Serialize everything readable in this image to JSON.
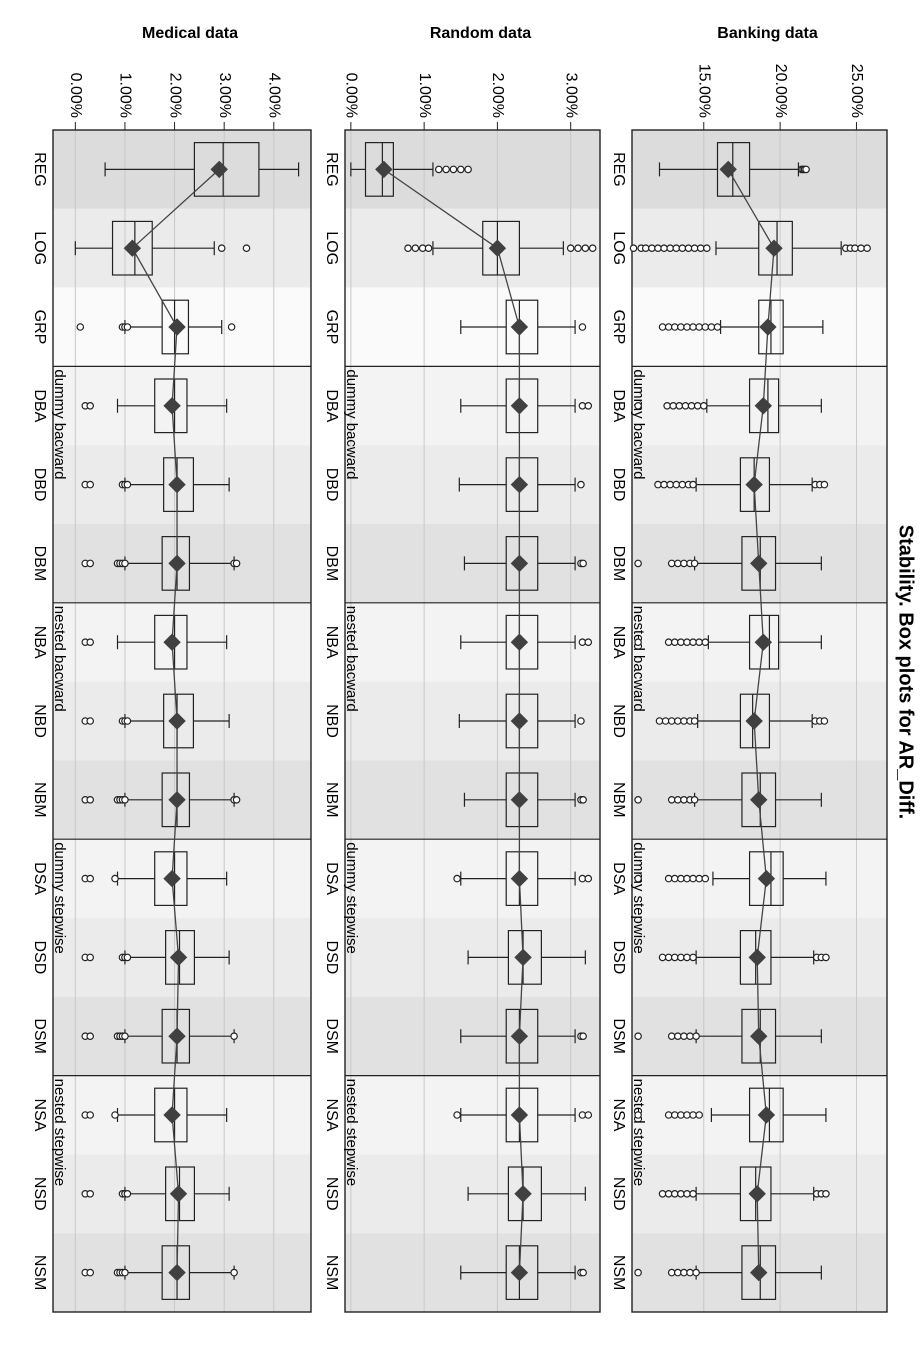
{
  "page": {
    "title": "Stability. Box plots for AR_Diff."
  },
  "categories": [
    "REG",
    "LOG",
    "GRP",
    "DBA",
    "DBD",
    "DBM",
    "NBA",
    "NBD",
    "NBM",
    "DSA",
    "DSD",
    "DSM",
    "NSA",
    "NSD",
    "NSM"
  ],
  "group_labels": [
    "dummy bacward",
    "nested bacward",
    "dummy stepwise",
    "nested stepwise"
  ],
  "chart_data": [
    {
      "type": "box",
      "title": "Banking data",
      "value_format": "percent",
      "ylim": [
        10.3,
        27.0
      ],
      "ticks": [
        15.0,
        20.0,
        25.0
      ],
      "tick_labels": [
        "15.00%",
        "20.00%",
        "25.00%"
      ],
      "series": [
        {
          "category": "REG",
          "whisker_low": 12.1,
          "q1": 15.9,
          "median": 16.9,
          "q3": 18.0,
          "whisker_high": 21.2,
          "mean": 16.6,
          "outliers": [
            21.4,
            21.5,
            21.6,
            21.7
          ]
        },
        {
          "category": "LOG",
          "whisker_low": 15.8,
          "q1": 18.6,
          "median": 19.8,
          "q3": 20.8,
          "whisker_high": 24.0,
          "mean": 19.6,
          "outliers": [
            10.4,
            10.9,
            11.2,
            11.6,
            12.0,
            12.4,
            12.8,
            13.2,
            13.6,
            14.0,
            14.4,
            14.8,
            15.2,
            24.3,
            24.6,
            24.9,
            25.3,
            25.7
          ]
        },
        {
          "category": "GRP",
          "whisker_low": 16.1,
          "q1": 18.6,
          "median": 19.4,
          "q3": 20.2,
          "whisker_high": 22.8,
          "mean": 19.2,
          "outliers": [
            12.3,
            12.7,
            13.1,
            13.5,
            13.9,
            14.3,
            14.7,
            15.1,
            15.5,
            15.9
          ]
        },
        {
          "category": "DBA",
          "whisker_low": 15.2,
          "q1": 18.0,
          "median": 19.2,
          "q3": 19.9,
          "whisker_high": 22.7,
          "mean": 18.9,
          "outliers": [
            10.7,
            12.6,
            13.0,
            13.4,
            13.8,
            14.2,
            14.6,
            15.0
          ]
        },
        {
          "category": "DBD",
          "whisker_low": 14.5,
          "q1": 17.4,
          "median": 18.3,
          "q3": 19.3,
          "whisker_high": 22.1,
          "mean": 18.3,
          "outliers": [
            12.0,
            12.4,
            12.8,
            13.2,
            13.6,
            14.0,
            14.3,
            22.3,
            22.6,
            22.9
          ]
        },
        {
          "category": "DBM",
          "whisker_low": 14.4,
          "q1": 17.5,
          "median": 18.7,
          "q3": 19.7,
          "whisker_high": 22.7,
          "mean": 18.6,
          "outliers": [
            10.7,
            12.9,
            13.3,
            13.7,
            14.1,
            14.4
          ]
        },
        {
          "category": "NBA",
          "whisker_low": 15.3,
          "q1": 18.0,
          "median": 19.3,
          "q3": 19.9,
          "whisker_high": 22.7,
          "mean": 18.9,
          "outliers": [
            10.7,
            12.7,
            13.1,
            13.5,
            13.9,
            14.3,
            14.7,
            15.1
          ]
        },
        {
          "category": "NBD",
          "whisker_low": 14.6,
          "q1": 17.4,
          "median": 18.2,
          "q3": 19.3,
          "whisker_high": 22.1,
          "mean": 18.3,
          "outliers": [
            12.1,
            12.5,
            12.9,
            13.3,
            13.7,
            14.1,
            14.4,
            22.3,
            22.6,
            22.9
          ]
        },
        {
          "category": "NBM",
          "whisker_low": 14.4,
          "q1": 17.5,
          "median": 18.7,
          "q3": 19.7,
          "whisker_high": 22.7,
          "mean": 18.6,
          "outliers": [
            10.7,
            12.9,
            13.3,
            13.7,
            14.1,
            14.4
          ]
        },
        {
          "category": "DSA",
          "whisker_low": 15.6,
          "q1": 18.0,
          "median": 19.4,
          "q3": 20.2,
          "whisker_high": 23.0,
          "mean": 19.1,
          "outliers": [
            10.7,
            12.7,
            13.1,
            13.5,
            13.9,
            14.3,
            14.7,
            15.1
          ]
        },
        {
          "category": "DSD",
          "whisker_low": 14.5,
          "q1": 17.4,
          "median": 18.4,
          "q3": 19.4,
          "whisker_high": 22.2,
          "mean": 18.5,
          "outliers": [
            12.3,
            12.7,
            13.1,
            13.5,
            13.9,
            14.3,
            22.4,
            22.7,
            23.0
          ]
        },
        {
          "category": "DSM",
          "whisker_low": 14.5,
          "q1": 17.5,
          "median": 18.7,
          "q3": 19.7,
          "whisker_high": 22.7,
          "mean": 18.6,
          "outliers": [
            10.7,
            12.9,
            13.3,
            13.7,
            14.1,
            14.5
          ]
        },
        {
          "category": "NSA",
          "whisker_low": 15.5,
          "q1": 18.0,
          "median": 19.3,
          "q3": 20.2,
          "whisker_high": 23.0,
          "mean": 19.1,
          "outliers": [
            10.7,
            12.7,
            13.1,
            13.5,
            13.9,
            14.3,
            14.7
          ]
        },
        {
          "category": "NSD",
          "whisker_low": 14.5,
          "q1": 17.4,
          "median": 18.4,
          "q3": 19.4,
          "whisker_high": 22.2,
          "mean": 18.5,
          "outliers": [
            12.3,
            12.7,
            13.1,
            13.5,
            13.9,
            14.3,
            22.4,
            22.7,
            23.0
          ]
        },
        {
          "category": "NSM",
          "whisker_low": 14.5,
          "q1": 17.5,
          "median": 18.7,
          "q3": 19.7,
          "whisker_high": 22.7,
          "mean": 18.6,
          "outliers": [
            10.7,
            12.9,
            13.3,
            13.7,
            14.1,
            14.5
          ]
        }
      ]
    },
    {
      "type": "box",
      "title": "Random data",
      "value_format": "percent",
      "ylim": [
        -0.08,
        3.4
      ],
      "ticks": [
        0.0,
        1.0,
        2.0,
        3.0
      ],
      "tick_labels": [
        "0.00%",
        "1.00%",
        "2.00%",
        "3.00%"
      ],
      "series": [
        {
          "category": "REG",
          "whisker_low": 0.0,
          "q1": 0.2,
          "median": 0.43,
          "q3": 0.58,
          "whisker_high": 1.12,
          "mean": 0.45,
          "outliers": [
            1.2,
            1.3,
            1.4,
            1.5,
            1.6
          ]
        },
        {
          "category": "LOG",
          "whisker_low": 1.12,
          "q1": 1.8,
          "median": 2.0,
          "q3": 2.3,
          "whisker_high": 2.9,
          "mean": 2.0,
          "outliers": [
            0.78,
            0.88,
            0.98,
            1.06,
            3.0,
            3.1,
            3.2,
            3.3
          ]
        },
        {
          "category": "GRP",
          "whisker_low": 1.5,
          "q1": 2.12,
          "median": 2.3,
          "q3": 2.55,
          "whisker_high": 3.06,
          "mean": 2.3,
          "outliers": [
            3.16
          ]
        },
        {
          "category": "DBA",
          "whisker_low": 1.5,
          "q1": 2.12,
          "median": 2.3,
          "q3": 2.55,
          "whisker_high": 3.06,
          "mean": 2.3,
          "outliers": [
            3.16,
            3.24
          ]
        },
        {
          "category": "DBD",
          "whisker_low": 1.48,
          "q1": 2.12,
          "median": 2.3,
          "q3": 2.55,
          "whisker_high": 3.06,
          "mean": 2.3,
          "outliers": [
            3.14
          ]
        },
        {
          "category": "DBM",
          "whisker_low": 1.55,
          "q1": 2.12,
          "median": 2.3,
          "q3": 2.55,
          "whisker_high": 3.06,
          "mean": 2.3,
          "outliers": [
            3.14,
            3.17
          ]
        },
        {
          "category": "NBA",
          "whisker_low": 1.5,
          "q1": 2.12,
          "median": 2.3,
          "q3": 2.55,
          "whisker_high": 3.06,
          "mean": 2.3,
          "outliers": [
            3.16,
            3.24
          ]
        },
        {
          "category": "NBD",
          "whisker_low": 1.48,
          "q1": 2.12,
          "median": 2.3,
          "q3": 2.55,
          "whisker_high": 3.06,
          "mean": 2.3,
          "outliers": [
            3.14
          ]
        },
        {
          "category": "NBM",
          "whisker_low": 1.55,
          "q1": 2.12,
          "median": 2.3,
          "q3": 2.55,
          "whisker_high": 3.06,
          "mean": 2.3,
          "outliers": [
            3.14,
            3.17
          ]
        },
        {
          "category": "DSA",
          "whisker_low": 1.5,
          "q1": 2.12,
          "median": 2.3,
          "q3": 2.55,
          "whisker_high": 3.06,
          "mean": 2.3,
          "outliers": [
            1.45,
            3.16,
            3.24
          ]
        },
        {
          "category": "DSD",
          "whisker_low": 1.6,
          "q1": 2.15,
          "median": 2.35,
          "q3": 2.6,
          "whisker_high": 3.2,
          "mean": 2.35,
          "outliers": []
        },
        {
          "category": "DSM",
          "whisker_low": 1.5,
          "q1": 2.12,
          "median": 2.3,
          "q3": 2.55,
          "whisker_high": 3.06,
          "mean": 2.3,
          "outliers": [
            3.14,
            3.17
          ]
        },
        {
          "category": "NSA",
          "whisker_low": 1.5,
          "q1": 2.12,
          "median": 2.3,
          "q3": 2.55,
          "whisker_high": 3.06,
          "mean": 2.3,
          "outliers": [
            1.45,
            3.16,
            3.24
          ]
        },
        {
          "category": "NSD",
          "whisker_low": 1.6,
          "q1": 2.15,
          "median": 2.35,
          "q3": 2.6,
          "whisker_high": 3.2,
          "mean": 2.35,
          "outliers": []
        },
        {
          "category": "NSM",
          "whisker_low": 1.5,
          "q1": 2.12,
          "median": 2.3,
          "q3": 2.55,
          "whisker_high": 3.06,
          "mean": 2.3,
          "outliers": [
            3.14,
            3.17
          ]
        }
      ]
    },
    {
      "type": "box",
      "title": "Medical data",
      "value_format": "percent",
      "ylim": [
        -0.45,
        4.75
      ],
      "ticks": [
        0.0,
        1.0,
        2.0,
        3.0,
        4.0
      ],
      "tick_labels": [
        "0.00%",
        "1.00%",
        "2.00%",
        "3.00%",
        "4.00%"
      ],
      "series": [
        {
          "category": "REG",
          "whisker_low": 0.6,
          "q1": 2.4,
          "median": 2.98,
          "q3": 3.7,
          "whisker_high": 4.5,
          "mean": 2.9,
          "outliers": []
        },
        {
          "category": "LOG",
          "whisker_low": 0.0,
          "q1": 0.75,
          "median": 1.2,
          "q3": 1.55,
          "whisker_high": 2.8,
          "mean": 1.15,
          "outliers": [
            2.95,
            3.45
          ]
        },
        {
          "category": "GRP",
          "whisker_low": 1.0,
          "q1": 1.75,
          "median": 2.0,
          "q3": 2.28,
          "whisker_high": 2.95,
          "mean": 2.05,
          "outliers": [
            0.1,
            0.95,
            1.0,
            1.05,
            3.15
          ]
        },
        {
          "category": "DBA",
          "whisker_low": 0.85,
          "q1": 1.6,
          "median": 2.0,
          "q3": 2.25,
          "whisker_high": 3.05,
          "mean": 1.95,
          "outliers": [
            0.2,
            0.3
          ]
        },
        {
          "category": "DBD",
          "whisker_low": 1.0,
          "q1": 1.78,
          "median": 2.05,
          "q3": 2.38,
          "whisker_high": 3.1,
          "mean": 2.05,
          "outliers": [
            0.2,
            0.3,
            0.95,
            1.0,
            1.05
          ]
        },
        {
          "category": "DBM",
          "whisker_low": 1.0,
          "q1": 1.75,
          "median": 2.05,
          "q3": 2.3,
          "whisker_high": 3.2,
          "mean": 2.05,
          "outliers": [
            0.2,
            0.3,
            0.85,
            0.9,
            0.95,
            1.0,
            3.2,
            3.25
          ]
        },
        {
          "category": "NBA",
          "whisker_low": 0.85,
          "q1": 1.6,
          "median": 2.0,
          "q3": 2.25,
          "whisker_high": 3.05,
          "mean": 1.95,
          "outliers": [
            0.2,
            0.3
          ]
        },
        {
          "category": "NBD",
          "whisker_low": 1.0,
          "q1": 1.78,
          "median": 2.05,
          "q3": 2.38,
          "whisker_high": 3.1,
          "mean": 2.05,
          "outliers": [
            0.2,
            0.3,
            0.95,
            1.0,
            1.05
          ]
        },
        {
          "category": "NBM",
          "whisker_low": 1.0,
          "q1": 1.75,
          "median": 2.05,
          "q3": 2.3,
          "whisker_high": 3.2,
          "mean": 2.05,
          "outliers": [
            0.2,
            0.3,
            0.85,
            0.9,
            0.95,
            1.0,
            3.2,
            3.25
          ]
        },
        {
          "category": "DSA",
          "whisker_low": 0.85,
          "q1": 1.6,
          "median": 2.0,
          "q3": 2.25,
          "whisker_high": 3.05,
          "mean": 1.95,
          "outliers": [
            0.2,
            0.3,
            0.8
          ]
        },
        {
          "category": "DSD",
          "whisker_low": 1.0,
          "q1": 1.82,
          "median": 2.1,
          "q3": 2.4,
          "whisker_high": 3.1,
          "mean": 2.08,
          "outliers": [
            0.2,
            0.3,
            0.95,
            1.0,
            1.05
          ]
        },
        {
          "category": "DSM",
          "whisker_low": 1.0,
          "q1": 1.75,
          "median": 2.05,
          "q3": 2.3,
          "whisker_high": 3.2,
          "mean": 2.05,
          "outliers": [
            0.2,
            0.3,
            0.85,
            0.9,
            0.95,
            1.0,
            3.2
          ]
        },
        {
          "category": "NSA",
          "whisker_low": 0.85,
          "q1": 1.6,
          "median": 2.0,
          "q3": 2.25,
          "whisker_high": 3.05,
          "mean": 1.95,
          "outliers": [
            0.2,
            0.3,
            0.8
          ]
        },
        {
          "category": "NSD",
          "whisker_low": 1.0,
          "q1": 1.82,
          "median": 2.1,
          "q3": 2.4,
          "whisker_high": 3.1,
          "mean": 2.08,
          "outliers": [
            0.2,
            0.3,
            0.95,
            1.0,
            1.05
          ]
        },
        {
          "category": "NSM",
          "whisker_low": 1.0,
          "q1": 1.75,
          "median": 2.05,
          "q3": 2.3,
          "whisker_high": 3.2,
          "mean": 2.05,
          "outliers": [
            0.2,
            0.3,
            0.85,
            0.9,
            0.95,
            1.0,
            3.2
          ]
        }
      ]
    }
  ]
}
